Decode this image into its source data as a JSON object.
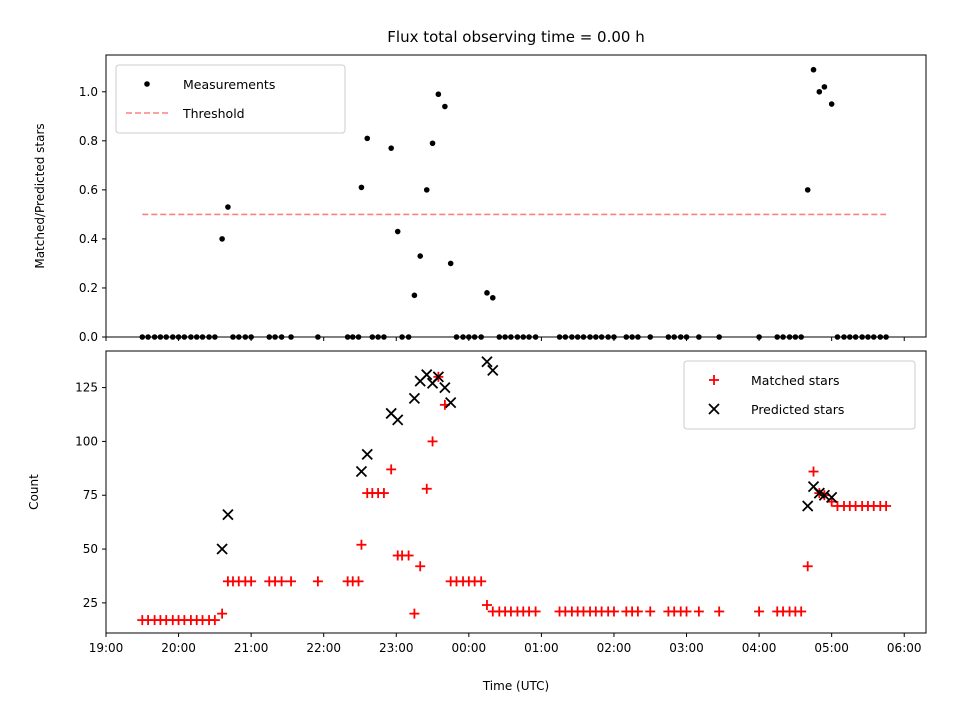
{
  "chart_data": [
    {
      "type": "scatter",
      "title": "Flux total observing time = 0.00 h",
      "ylabel": "Matched/Predicted stars",
      "xlabel": "",
      "xlim": [
        19.0,
        30.3
      ],
      "ylim": [
        0.0,
        1.15
      ],
      "xticks": [
        19,
        20,
        21,
        22,
        23,
        24,
        25,
        26,
        27,
        28,
        29,
        30
      ],
      "yticks": [
        0.0,
        0.2,
        0.4,
        0.6,
        0.8,
        1.0
      ],
      "ytick_labels": [
        "0.0",
        "0.2",
        "0.4",
        "0.6",
        "0.8",
        "1.0"
      ],
      "legend_position": "top-left",
      "series": [
        {
          "name": "Measurements",
          "marker": "dot",
          "color": "#000000",
          "points": [
            [
              19.5,
              0
            ],
            [
              19.58,
              0
            ],
            [
              19.67,
              0
            ],
            [
              19.75,
              0
            ],
            [
              19.83,
              0
            ],
            [
              19.92,
              0
            ],
            [
              20.0,
              0
            ],
            [
              20.08,
              0
            ],
            [
              20.17,
              0
            ],
            [
              20.25,
              0
            ],
            [
              20.33,
              0
            ],
            [
              20.42,
              0
            ],
            [
              20.5,
              0
            ],
            [
              20.6,
              0.4
            ],
            [
              20.68,
              0.53
            ],
            [
              20.75,
              0
            ],
            [
              20.83,
              0
            ],
            [
              20.92,
              0
            ],
            [
              21.0,
              0
            ],
            [
              21.25,
              0
            ],
            [
              21.33,
              0
            ],
            [
              21.42,
              0
            ],
            [
              21.55,
              0
            ],
            [
              21.92,
              0
            ],
            [
              22.33,
              0
            ],
            [
              22.4,
              0
            ],
            [
              22.48,
              0
            ],
            [
              22.52,
              0.61
            ],
            [
              22.6,
              0.81
            ],
            [
              22.67,
              0
            ],
            [
              22.75,
              0
            ],
            [
              22.83,
              0
            ],
            [
              22.93,
              0.77
            ],
            [
              23.02,
              0.43
            ],
            [
              23.08,
              0
            ],
            [
              23.17,
              0
            ],
            [
              23.25,
              0.17
            ],
            [
              23.33,
              0.33
            ],
            [
              23.42,
              0.6
            ],
            [
              23.5,
              0.79
            ],
            [
              23.58,
              0.99
            ],
            [
              23.67,
              0.94
            ],
            [
              23.75,
              0.3
            ],
            [
              23.83,
              0
            ],
            [
              23.92,
              0
            ],
            [
              24.0,
              0
            ],
            [
              24.08,
              0
            ],
            [
              24.17,
              0
            ],
            [
              24.25,
              0.18
            ],
            [
              24.33,
              0.16
            ],
            [
              24.42,
              0
            ],
            [
              24.5,
              0
            ],
            [
              24.58,
              0
            ],
            [
              24.67,
              0
            ],
            [
              24.75,
              0
            ],
            [
              24.83,
              0
            ],
            [
              24.92,
              0
            ],
            [
              25.25,
              0
            ],
            [
              25.33,
              0
            ],
            [
              25.42,
              0
            ],
            [
              25.5,
              0
            ],
            [
              25.58,
              0
            ],
            [
              25.67,
              0
            ],
            [
              25.75,
              0
            ],
            [
              25.83,
              0
            ],
            [
              25.92,
              0
            ],
            [
              26.0,
              0
            ],
            [
              26.17,
              0
            ],
            [
              26.25,
              0
            ],
            [
              26.33,
              0
            ],
            [
              26.5,
              0
            ],
            [
              26.75,
              0
            ],
            [
              26.83,
              0
            ],
            [
              26.92,
              0
            ],
            [
              27.0,
              0
            ],
            [
              27.17,
              0
            ],
            [
              27.45,
              0
            ],
            [
              28.0,
              0
            ],
            [
              28.25,
              0
            ],
            [
              28.33,
              0
            ],
            [
              28.42,
              0
            ],
            [
              28.5,
              0
            ],
            [
              28.58,
              0
            ],
            [
              28.67,
              0.6
            ],
            [
              28.75,
              1.09
            ],
            [
              28.83,
              1.0
            ],
            [
              28.9,
              1.02
            ],
            [
              29.0,
              0.95
            ],
            [
              29.08,
              0
            ],
            [
              29.17,
              0
            ],
            [
              29.25,
              0
            ],
            [
              29.33,
              0
            ],
            [
              29.42,
              0
            ],
            [
              29.5,
              0
            ],
            [
              29.58,
              0
            ],
            [
              29.67,
              0
            ],
            [
              29.75,
              0
            ]
          ]
        },
        {
          "name": "Threshold",
          "line_style": "dashed",
          "color": "#ff8080",
          "x": [
            19.5,
            29.75
          ],
          "y": [
            0.5,
            0.5
          ]
        }
      ]
    },
    {
      "type": "scatter",
      "title": "",
      "xlabel": "Time (UTC)",
      "ylabel": "Count",
      "xlim": [
        19.0,
        30.3
      ],
      "ylim": [
        11,
        142
      ],
      "xticks": [
        19,
        20,
        21,
        22,
        23,
        24,
        25,
        26,
        27,
        28,
        29,
        30
      ],
      "xtick_labels": [
        "19:00",
        "20:00",
        "21:00",
        "22:00",
        "23:00",
        "00:00",
        "01:00",
        "02:00",
        "03:00",
        "04:00",
        "05:00",
        "06:00"
      ],
      "yticks": [
        25,
        50,
        75,
        100,
        125
      ],
      "ytick_labels": [
        "25",
        "50",
        "75",
        "100",
        "125"
      ],
      "legend_position": "top-right",
      "series": [
        {
          "name": "Matched stars",
          "marker": "plus",
          "color": "#ff0000",
          "points": [
            [
              19.5,
              17
            ],
            [
              19.58,
              17
            ],
            [
              19.67,
              17
            ],
            [
              19.75,
              17
            ],
            [
              19.83,
              17
            ],
            [
              19.92,
              17
            ],
            [
              20.0,
              17
            ],
            [
              20.08,
              17
            ],
            [
              20.17,
              17
            ],
            [
              20.25,
              17
            ],
            [
              20.33,
              17
            ],
            [
              20.42,
              17
            ],
            [
              20.5,
              17
            ],
            [
              20.6,
              20
            ],
            [
              20.68,
              35
            ],
            [
              20.75,
              35
            ],
            [
              20.83,
              35
            ],
            [
              20.92,
              35
            ],
            [
              21.0,
              35
            ],
            [
              21.25,
              35
            ],
            [
              21.33,
              35
            ],
            [
              21.42,
              35
            ],
            [
              21.55,
              35
            ],
            [
              21.92,
              35
            ],
            [
              22.33,
              35
            ],
            [
              22.4,
              35
            ],
            [
              22.48,
              35
            ],
            [
              22.52,
              52
            ],
            [
              22.6,
              76
            ],
            [
              22.67,
              76
            ],
            [
              22.75,
              76
            ],
            [
              22.83,
              76
            ],
            [
              22.93,
              87
            ],
            [
              23.02,
              47
            ],
            [
              23.08,
              47
            ],
            [
              23.17,
              47
            ],
            [
              23.25,
              20
            ],
            [
              23.33,
              42
            ],
            [
              23.42,
              78
            ],
            [
              23.5,
              100
            ],
            [
              23.58,
              130
            ],
            [
              23.67,
              117
            ],
            [
              23.75,
              35
            ],
            [
              23.83,
              35
            ],
            [
              23.92,
              35
            ],
            [
              24.0,
              35
            ],
            [
              24.08,
              35
            ],
            [
              24.17,
              35
            ],
            [
              24.25,
              24
            ],
            [
              24.33,
              21
            ],
            [
              24.42,
              21
            ],
            [
              24.5,
              21
            ],
            [
              24.58,
              21
            ],
            [
              24.67,
              21
            ],
            [
              24.75,
              21
            ],
            [
              24.83,
              21
            ],
            [
              24.92,
              21
            ],
            [
              25.25,
              21
            ],
            [
              25.33,
              21
            ],
            [
              25.42,
              21
            ],
            [
              25.5,
              21
            ],
            [
              25.58,
              21
            ],
            [
              25.67,
              21
            ],
            [
              25.75,
              21
            ],
            [
              25.83,
              21
            ],
            [
              25.92,
              21
            ],
            [
              26.0,
              21
            ],
            [
              26.17,
              21
            ],
            [
              26.25,
              21
            ],
            [
              26.33,
              21
            ],
            [
              26.5,
              21
            ],
            [
              26.75,
              21
            ],
            [
              26.83,
              21
            ],
            [
              26.92,
              21
            ],
            [
              27.0,
              21
            ],
            [
              27.17,
              21
            ],
            [
              27.45,
              21
            ],
            [
              28.0,
              21
            ],
            [
              28.25,
              21
            ],
            [
              28.33,
              21
            ],
            [
              28.42,
              21
            ],
            [
              28.5,
              21
            ],
            [
              28.58,
              21
            ],
            [
              28.67,
              42
            ],
            [
              28.75,
              86
            ],
            [
              28.83,
              76
            ],
            [
              28.9,
              75
            ],
            [
              29.0,
              72
            ],
            [
              29.08,
              70
            ],
            [
              29.17,
              70
            ],
            [
              29.25,
              70
            ],
            [
              29.33,
              70
            ],
            [
              29.42,
              70
            ],
            [
              29.5,
              70
            ],
            [
              29.58,
              70
            ],
            [
              29.67,
              70
            ],
            [
              29.75,
              70
            ]
          ]
        },
        {
          "name": "Predicted stars",
          "marker": "x",
          "color": "#000000",
          "points": [
            [
              20.6,
              50
            ],
            [
              20.68,
              66
            ],
            [
              22.52,
              86
            ],
            [
              22.6,
              94
            ],
            [
              22.93,
              113
            ],
            [
              23.02,
              110
            ],
            [
              23.25,
              120
            ],
            [
              23.33,
              128
            ],
            [
              23.42,
              131
            ],
            [
              23.5,
              127
            ],
            [
              23.58,
              130
            ],
            [
              23.67,
              125
            ],
            [
              23.75,
              118
            ],
            [
              24.25,
              137
            ],
            [
              24.33,
              133
            ],
            [
              28.67,
              70
            ],
            [
              28.75,
              79
            ],
            [
              28.83,
              76
            ],
            [
              28.9,
              75
            ],
            [
              29.0,
              74
            ]
          ]
        }
      ]
    }
  ]
}
